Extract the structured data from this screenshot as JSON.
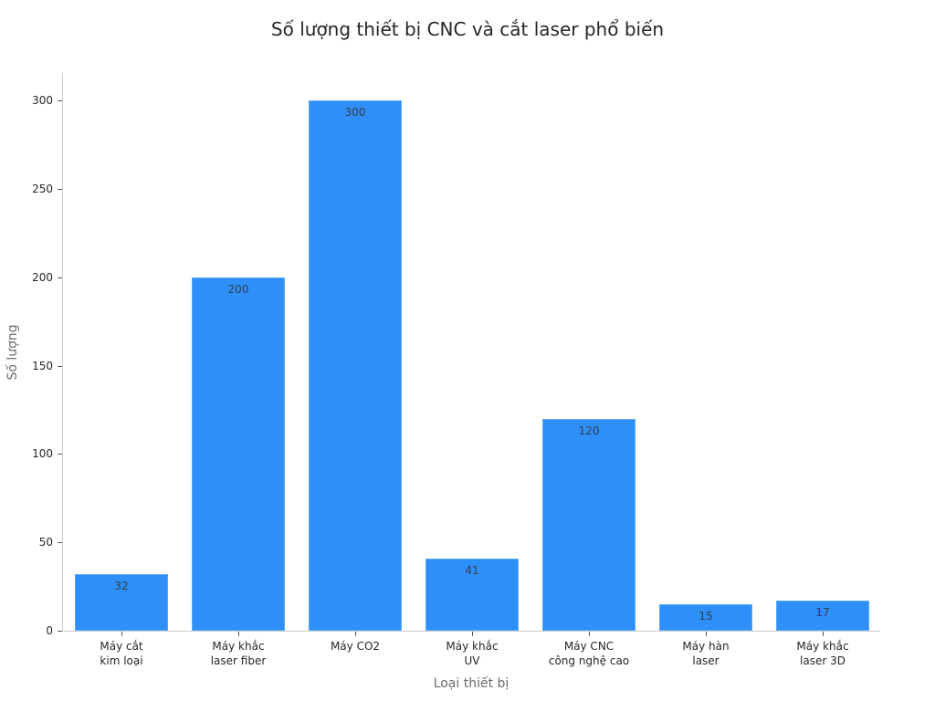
{
  "chart_data": {
    "type": "bar",
    "title": "Số lượng thiết bị CNC và cắt laser phổ biến",
    "xlabel": "Loại thiết bị",
    "ylabel": "Số lượng",
    "categories": [
      "Máy cắt kim loại",
      "Máy khắc laser fiber",
      "Máy CO2",
      "Máy khắc UV",
      "Máy CNC công nghệ cao",
      "Máy hàn laser",
      "Máy khắc laser 3D"
    ],
    "category_lines": [
      [
        "Máy cắt",
        "kim loại"
      ],
      [
        "Máy khắc",
        "laser fiber"
      ],
      [
        "Máy CO2"
      ],
      [
        "Máy khắc",
        "UV"
      ],
      [
        "Máy CNC",
        "công nghệ cao"
      ],
      [
        "Máy hàn",
        "laser"
      ],
      [
        "Máy khắc",
        "laser 3D"
      ]
    ],
    "values": [
      32,
      200,
      300,
      41,
      120,
      15,
      17
    ],
    "data_labels": [
      "32",
      "200",
      "300",
      "41",
      "120",
      "15",
      "17"
    ],
    "ylim": [
      0,
      315
    ],
    "yticks": [
      0,
      50,
      100,
      150,
      200,
      250,
      300
    ],
    "ytick_labels": [
      "0",
      "50",
      "100",
      "150",
      "200",
      "250",
      "300"
    ],
    "grid": false,
    "legend": null,
    "bar_color": "#2e8ff8"
  }
}
